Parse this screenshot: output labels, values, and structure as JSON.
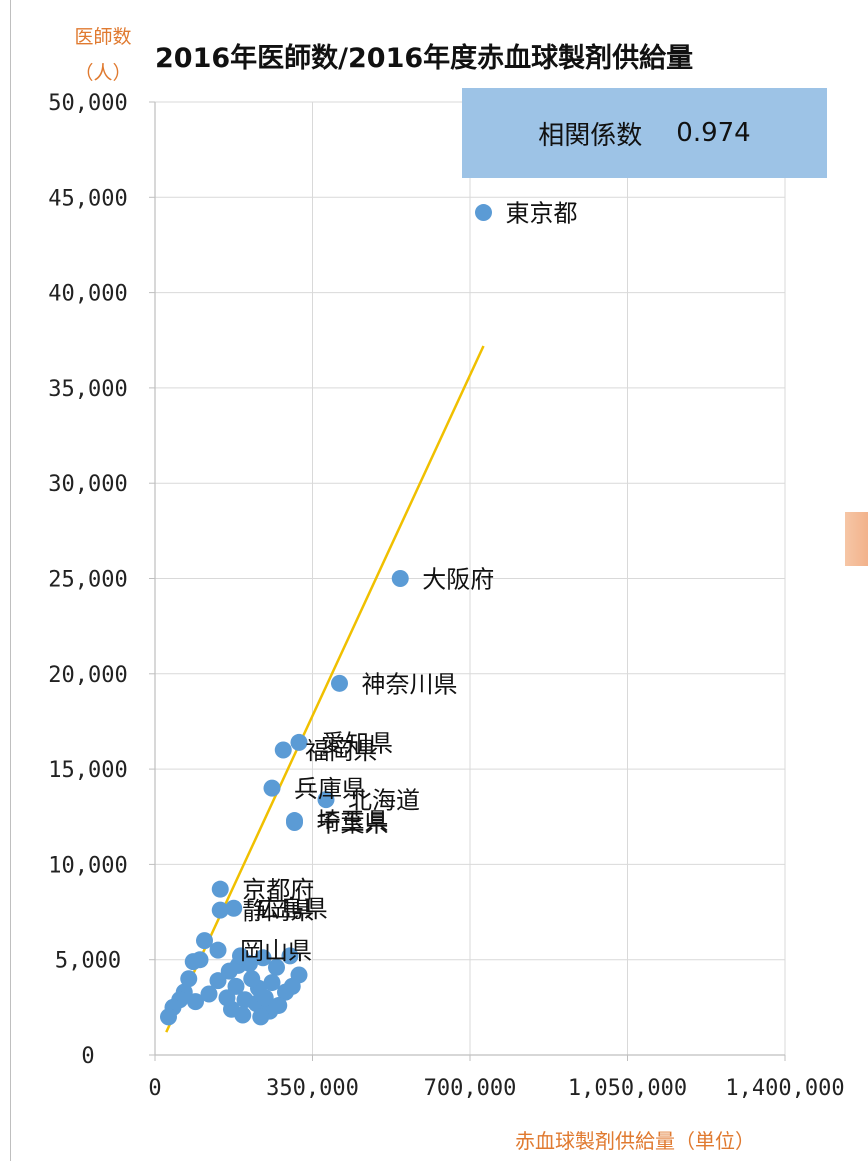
{
  "y_axis_title": [
    "医師数",
    "（人）"
  ],
  "title": "2016年医師数/2016年度赤血球製剤供給量",
  "correlation": {
    "label": "相関係数",
    "value": "0.974"
  },
  "x_axis_title": "赤血球製剤供給量（単位）",
  "colors": {
    "point": "#5b9bd5",
    "trend": "#f0c000",
    "axis_title": "#e07a30",
    "corr_box": "#9dc3e6",
    "grid": "#d9d9d9"
  },
  "chart_data": {
    "type": "scatter",
    "title": "2016年医師数/2016年度赤血球製剤供給量",
    "xlabel": "赤血球製剤供給量（単位）",
    "ylabel": "医師数（人）",
    "xlim": [
      0,
      1400000
    ],
    "ylim": [
      0,
      50000
    ],
    "x_ticks": [
      "0",
      "350,000",
      "700,000",
      "1,050,000",
      "1,400,000"
    ],
    "y_ticks": [
      "0",
      "5,000",
      "10,000",
      "15,000",
      "20,000",
      "25,000",
      "30,000",
      "35,000",
      "40,000",
      "45,000",
      "50,000"
    ],
    "grid": true,
    "series": [
      {
        "points": [
          {
            "x": 730000,
            "y": 44200,
            "label": "東京都"
          },
          {
            "x": 545000,
            "y": 25000,
            "label": "大阪府"
          },
          {
            "x": 410000,
            "y": 19500,
            "label": "神奈川県"
          },
          {
            "x": 320000,
            "y": 16400,
            "label": "愛知県"
          },
          {
            "x": 285000,
            "y": 16000,
            "label": "福岡県"
          },
          {
            "x": 260000,
            "y": 14000,
            "label": "兵庫県"
          },
          {
            "x": 380000,
            "y": 13400,
            "label": "北海道"
          },
          {
            "x": 310000,
            "y": 12300,
            "label": "埼玉県"
          },
          {
            "x": 310000,
            "y": 12200,
            "label": "千葉県"
          },
          {
            "x": 145000,
            "y": 8700,
            "label": "京都府"
          },
          {
            "x": 175000,
            "y": 7700,
            "label": "広島県"
          },
          {
            "x": 145000,
            "y": 7600,
            "label": "静岡県"
          },
          {
            "x": 140000,
            "y": 5500,
            "label": "岡山県"
          },
          {
            "x": 110000,
            "y": 6000,
            "label": ""
          },
          {
            "x": 100000,
            "y": 5000,
            "label": ""
          },
          {
            "x": 85000,
            "y": 4900,
            "label": ""
          },
          {
            "x": 75000,
            "y": 4000,
            "label": ""
          },
          {
            "x": 65000,
            "y": 3300,
            "label": ""
          },
          {
            "x": 55000,
            "y": 2900,
            "label": ""
          },
          {
            "x": 40000,
            "y": 2500,
            "label": ""
          },
          {
            "x": 30000,
            "y": 2000,
            "label": ""
          },
          {
            "x": 90000,
            "y": 2800,
            "label": ""
          },
          {
            "x": 120000,
            "y": 3200,
            "label": ""
          },
          {
            "x": 140000,
            "y": 3900,
            "label": ""
          },
          {
            "x": 165000,
            "y": 4400,
            "label": ""
          },
          {
            "x": 185000,
            "y": 4700,
            "label": ""
          },
          {
            "x": 210000,
            "y": 4800,
            "label": ""
          },
          {
            "x": 240000,
            "y": 5100,
            "label": ""
          },
          {
            "x": 270000,
            "y": 4600,
            "label": ""
          },
          {
            "x": 300000,
            "y": 5200,
            "label": ""
          },
          {
            "x": 320000,
            "y": 4200,
            "label": ""
          },
          {
            "x": 170000,
            "y": 2400,
            "label": ""
          },
          {
            "x": 200000,
            "y": 2900,
            "label": ""
          },
          {
            "x": 230000,
            "y": 3500,
            "label": ""
          },
          {
            "x": 260000,
            "y": 3800,
            "label": ""
          },
          {
            "x": 290000,
            "y": 3300,
            "label": ""
          },
          {
            "x": 195000,
            "y": 2100,
            "label": ""
          },
          {
            "x": 225000,
            "y": 2700,
            "label": ""
          },
          {
            "x": 255000,
            "y": 2300,
            "label": ""
          },
          {
            "x": 180000,
            "y": 3600,
            "label": ""
          },
          {
            "x": 215000,
            "y": 4000,
            "label": ""
          },
          {
            "x": 245000,
            "y": 3000,
            "label": ""
          },
          {
            "x": 275000,
            "y": 2600,
            "label": ""
          },
          {
            "x": 305000,
            "y": 3600,
            "label": ""
          },
          {
            "x": 160000,
            "y": 3000,
            "label": ""
          },
          {
            "x": 190000,
            "y": 5200,
            "label": ""
          },
          {
            "x": 235000,
            "y": 2000,
            "label": ""
          }
        ]
      }
    ],
    "trendline": {
      "x1": 25000,
      "y1": 1200,
      "x2": 730000,
      "y2": 37200
    }
  }
}
